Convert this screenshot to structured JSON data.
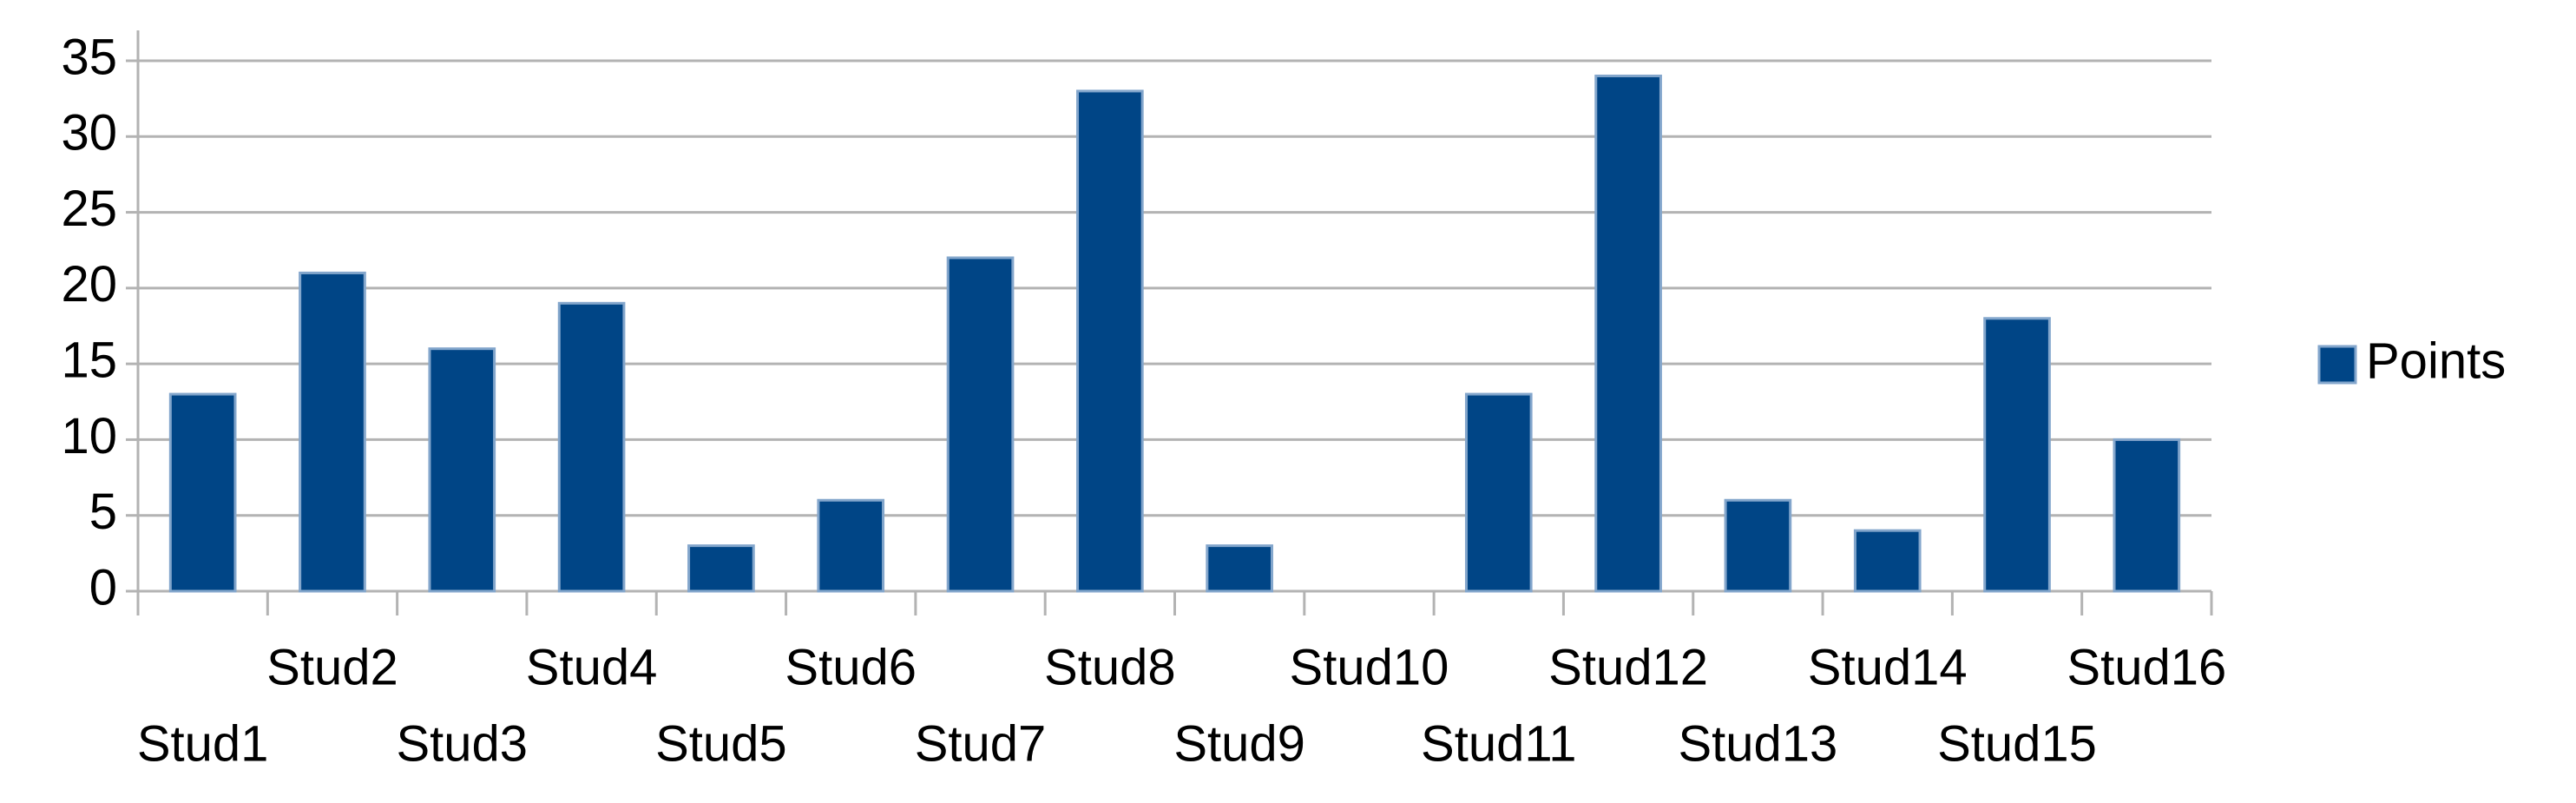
{
  "chart_data": {
    "type": "bar",
    "categories": [
      "Stud1",
      "Stud2",
      "Stud3",
      "Stud4",
      "Stud5",
      "Stud6",
      "Stud7",
      "Stud8",
      "Stud9",
      "Stud10",
      "Stud11",
      "Stud12",
      "Stud13",
      "Stud14",
      "Stud15",
      "Stud16"
    ],
    "series": [
      {
        "name": "Points",
        "color": "#004586",
        "values": [
          13,
          21,
          16,
          19,
          3,
          6,
          22,
          33,
          3,
          0,
          13,
          34,
          6,
          4,
          18,
          10
        ]
      }
    ],
    "ylim": [
      0,
      35
    ],
    "yticks": [
      0,
      5,
      10,
      15,
      20,
      25,
      30,
      35
    ],
    "grid": true,
    "legend": "right"
  }
}
